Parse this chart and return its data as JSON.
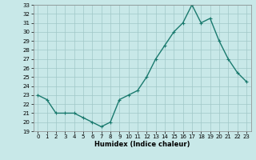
{
  "x": [
    0,
    1,
    2,
    3,
    4,
    5,
    6,
    7,
    8,
    9,
    10,
    11,
    12,
    13,
    14,
    15,
    16,
    17,
    18,
    19,
    20,
    21,
    22,
    23
  ],
  "y": [
    23,
    22.5,
    21,
    21,
    21,
    20.5,
    20,
    19.5,
    20,
    22.5,
    23,
    23.5,
    25,
    27,
    28.5,
    30,
    31,
    33,
    31,
    31.5,
    29,
    27,
    25.5,
    24.5
  ],
  "line_color": "#1a7a6e",
  "marker": "+",
  "marker_size": 3,
  "background_color": "#c8e8e8",
  "grid_color": "#a0c8c8",
  "xlabel": "Humidex (Indice chaleur)",
  "ylim": [
    19,
    33
  ],
  "xlim": [
    -0.5,
    23.5
  ],
  "yticks": [
    19,
    20,
    21,
    22,
    23,
    24,
    25,
    26,
    27,
    28,
    29,
    30,
    31,
    32,
    33
  ],
  "xticks": [
    0,
    1,
    2,
    3,
    4,
    5,
    6,
    7,
    8,
    9,
    10,
    11,
    12,
    13,
    14,
    15,
    16,
    17,
    18,
    19,
    20,
    21,
    22,
    23
  ],
  "tick_fontsize": 5,
  "xlabel_fontsize": 6,
  "linewidth": 1.0,
  "markeredgewidth": 0.8
}
